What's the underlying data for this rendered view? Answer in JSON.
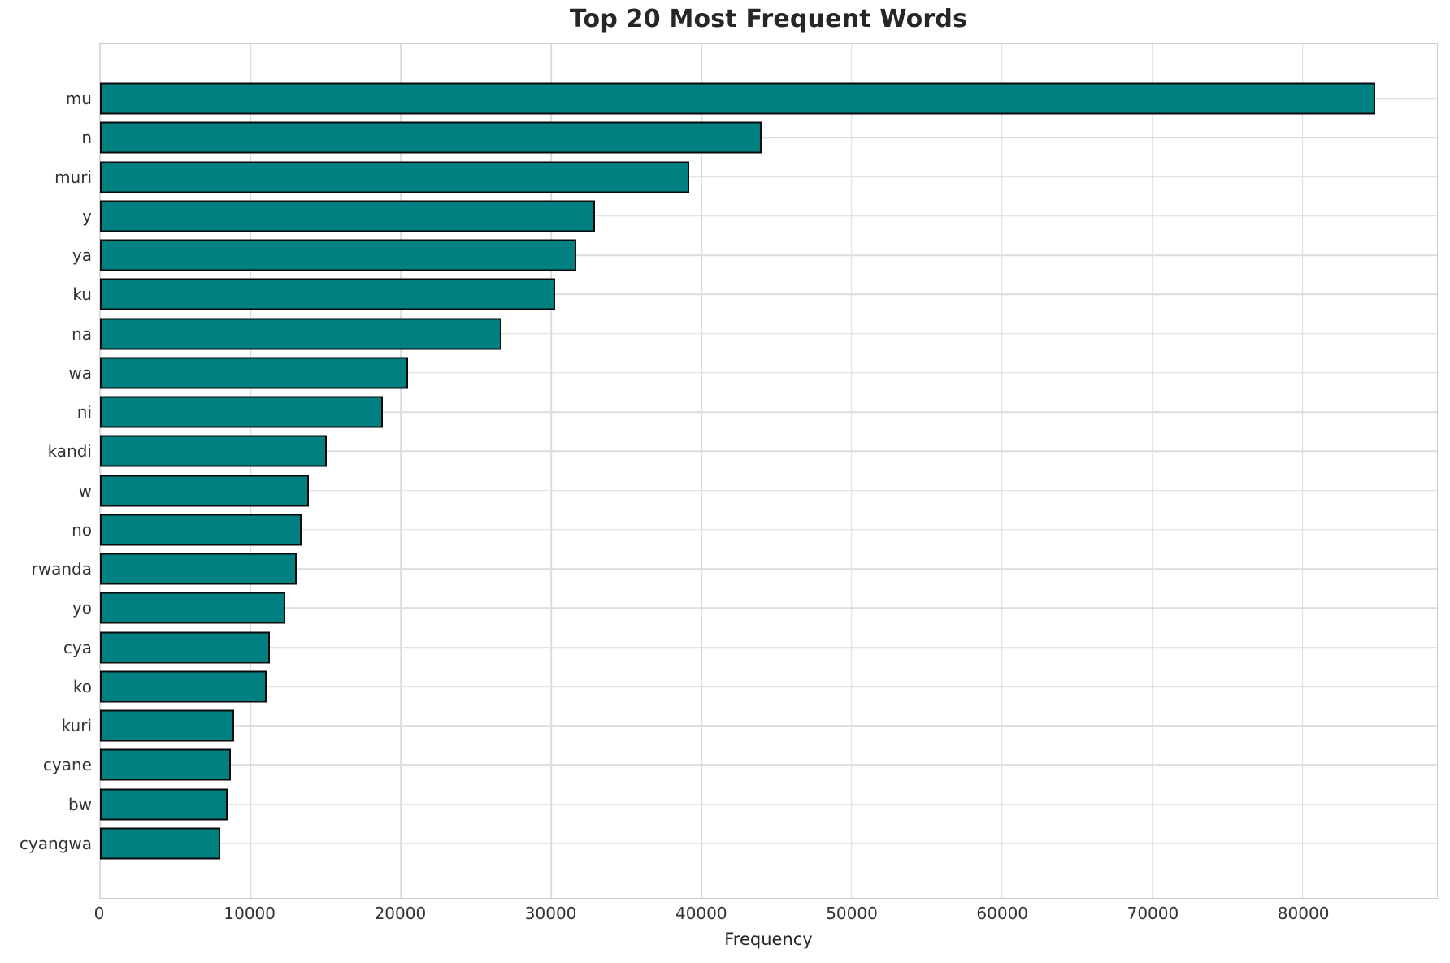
{
  "chart_data": {
    "type": "bar",
    "orientation": "horizontal",
    "title": "Top 20 Most Frequent Words",
    "xlabel": "Frequency",
    "ylabel": "",
    "categories": [
      "mu",
      "n",
      "muri",
      "y",
      "ya",
      "ku",
      "na",
      "wa",
      "ni",
      "kandi",
      "w",
      "no",
      "rwanda",
      "yo",
      "cya",
      "ko",
      "kuri",
      "cyane",
      "bw",
      "cyangwa"
    ],
    "values": [
      84800,
      44000,
      39200,
      32900,
      31700,
      30300,
      26700,
      20500,
      18800,
      15100,
      13900,
      13400,
      13100,
      12300,
      11300,
      11100,
      8900,
      8700,
      8500,
      8000
    ],
    "xticks": [
      0,
      10000,
      20000,
      30000,
      40000,
      50000,
      60000,
      70000,
      80000
    ],
    "xlim": [
      0,
      88930
    ],
    "grid": true,
    "legend_visible": false,
    "colors": {
      "bar_fill": "#008080",
      "bar_edge": "#0a0a0a",
      "grid": "#dcdcdc",
      "spine": "#cccccc",
      "title_text": "#262626",
      "tick_text": "#333333"
    }
  }
}
